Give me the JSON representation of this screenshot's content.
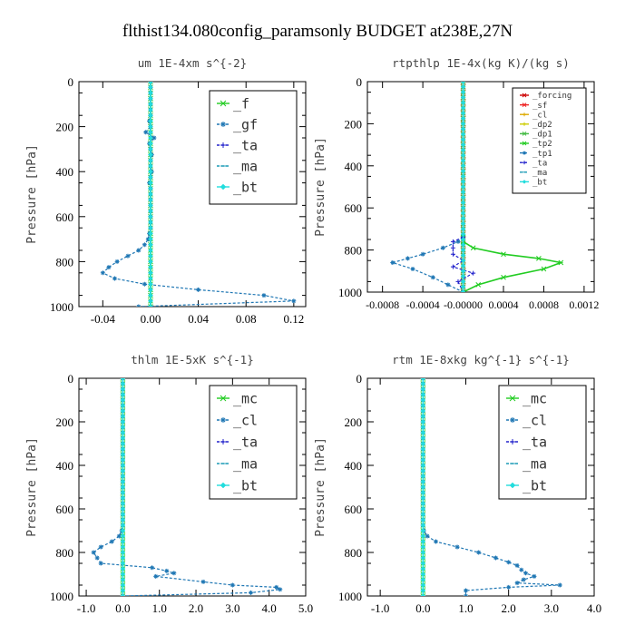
{
  "figure": {
    "title": "flthist134.080config_paramsonly  BUDGET at238E,27N"
  },
  "chart_data": [
    {
      "type": "line",
      "title": "um   1E-4xm s^{-2}",
      "ylabel": "Pressure [hPa]",
      "xlim": [
        -0.06,
        0.13
      ],
      "ylim": [
        1000,
        0
      ],
      "x_ticks": [
        -0.04,
        0.0,
        0.04,
        0.08,
        0.12
      ],
      "x_tick_labels": [
        "-0.04",
        "0.00",
        "0.04",
        "0.08",
        "0.12"
      ],
      "y_ticks": [
        0,
        200,
        400,
        600,
        800,
        1000
      ],
      "legend_position": "top-right",
      "series": [
        {
          "name": "_f",
          "color": "#22cc22",
          "style": "solid",
          "marker": "x",
          "x": [
            0,
            0,
            0,
            0,
            0,
            0,
            0,
            0,
            0,
            0,
            0,
            0,
            0,
            0,
            0,
            0,
            0,
            0,
            0,
            0,
            0,
            0,
            0,
            0,
            0,
            0,
            0,
            0,
            0,
            0,
            0,
            0,
            0,
            0,
            0,
            0,
            0,
            0,
            0,
            0,
            0
          ],
          "y": [
            0,
            25,
            50,
            75,
            100,
            125,
            150,
            175,
            200,
            225,
            250,
            275,
            300,
            325,
            350,
            375,
            400,
            425,
            450,
            475,
            500,
            525,
            550,
            575,
            600,
            625,
            650,
            675,
            700,
            725,
            750,
            775,
            800,
            825,
            850,
            875,
            900,
            925,
            950,
            975,
            1000
          ]
        },
        {
          "name": "_gf",
          "color": "#1f77b4",
          "style": "dashed",
          "marker": "asterisk",
          "x": [
            0,
            0,
            0,
            0,
            0,
            0,
            0,
            -0.001,
            0,
            -0.004,
            0.003,
            -0.001,
            0,
            0.001,
            0,
            0,
            0.001,
            0,
            -0.001,
            0,
            0,
            0,
            0,
            0,
            0,
            0,
            0,
            -0.001,
            -0.002,
            -0.005,
            -0.01,
            -0.019,
            -0.028,
            -0.035,
            -0.04,
            -0.03,
            -0.005,
            0.04,
            0.095,
            0.12,
            -0.01
          ],
          "y": [
            0,
            25,
            50,
            75,
            100,
            125,
            150,
            175,
            200,
            225,
            250,
            275,
            300,
            325,
            350,
            375,
            400,
            425,
            450,
            475,
            500,
            525,
            550,
            575,
            600,
            625,
            650,
            675,
            700,
            725,
            750,
            775,
            800,
            825,
            850,
            875,
            900,
            925,
            950,
            975,
            1000
          ]
        },
        {
          "name": "_ta",
          "color": "#2222cc",
          "style": "dashed",
          "marker": "plus",
          "x": [
            0,
            0
          ],
          "y": [
            0,
            1000
          ]
        },
        {
          "name": "_ma",
          "color": "#1a9ab5",
          "style": "dashed",
          "marker": "dash",
          "x": [
            0,
            0
          ],
          "y": [
            0,
            1000
          ]
        },
        {
          "name": "_bt",
          "color": "#22dddd",
          "style": "solid",
          "marker": "diamond",
          "x": [
            0,
            0
          ],
          "y": [
            0,
            1000
          ]
        }
      ]
    },
    {
      "type": "line",
      "title": "rtpthlp   1E-4x(kg K)/(kg s)",
      "ylabel": "Pressure [hPa]",
      "xlim": [
        -0.00095,
        0.0013
      ],
      "ylim": [
        1000,
        0
      ],
      "x_ticks": [
        -0.0008,
        -0.0004,
        0.0,
        0.0004,
        0.0008,
        0.0012
      ],
      "x_tick_labels": [
        "-0.0008",
        "-0.0004",
        "-0.00000",
        "0.0004",
        "0.0008",
        "0.0012"
      ],
      "y_ticks": [
        0,
        200,
        400,
        600,
        800,
        1000
      ],
      "legend_position": "top-right",
      "series": [
        {
          "name": "_forcing",
          "color": "#cc0000",
          "style": "solid",
          "marker": "x",
          "x": [
            0,
            0
          ],
          "y": [
            0,
            1000
          ]
        },
        {
          "name": "_sf",
          "color": "#ee2222",
          "style": "solid",
          "marker": "x",
          "x": [
            0,
            0
          ],
          "y": [
            0,
            1000
          ]
        },
        {
          "name": "_cl",
          "color": "#ddaa00",
          "style": "solid",
          "marker": "plus",
          "x": [
            0,
            0
          ],
          "y": [
            0,
            1000
          ]
        },
        {
          "name": "_dp2",
          "color": "#cccc00",
          "style": "solid",
          "marker": "plus",
          "x": [
            0,
            0
          ],
          "y": [
            0,
            1000
          ]
        },
        {
          "name": "_dp1",
          "color": "#44bb44",
          "style": "solid",
          "marker": "x",
          "x": [
            0,
            0
          ],
          "y": [
            0,
            1000
          ]
        },
        {
          "name": "_tp2",
          "color": "#22cc22",
          "style": "solid",
          "marker": "x",
          "x": [
            0,
            0,
            0.0001,
            0.0004,
            0.00075,
            0.00097,
            0.0008,
            0.0004,
            0.00015,
            0
          ],
          "y": [
            740,
            760,
            790,
            820,
            840,
            860,
            890,
            930,
            965,
            1000
          ]
        },
        {
          "name": "_tp1",
          "color": "#1f77b4",
          "style": "dashed",
          "marker": "asterisk",
          "x": [
            0,
            -5e-05,
            -0.0002,
            -0.0004,
            -0.00055,
            -0.0007,
            -0.0005,
            -0.0003,
            -0.00015,
            0
          ],
          "y": [
            740,
            760,
            790,
            820,
            840,
            860,
            890,
            930,
            965,
            1000
          ]
        },
        {
          "name": "_ta",
          "color": "#2222cc",
          "style": "dashed",
          "marker": "plus",
          "x": [
            0,
            -0.0001,
            -0.0001,
            -0.0001,
            0,
            -0.0001,
            0.0001,
            -5e-05,
            0
          ],
          "y": [
            740,
            760,
            790,
            820,
            850,
            880,
            910,
            950,
            1000
          ]
        },
        {
          "name": "_ma",
          "color": "#1a9ab5",
          "style": "dashed",
          "marker": "dash",
          "x": [
            0,
            0
          ],
          "y": [
            0,
            1000
          ]
        },
        {
          "name": "_bt",
          "color": "#22dddd",
          "style": "solid",
          "marker": "diamond",
          "x": [
            0,
            0
          ],
          "y": [
            0,
            1000
          ]
        }
      ]
    },
    {
      "type": "line",
      "title": "thlm   1E-5xK s^{-1}",
      "ylabel": "Pressure [hPa]",
      "xlim": [
        -1.2,
        5.0
      ],
      "ylim": [
        1000,
        0
      ],
      "x_ticks": [
        -1.0,
        0.0,
        1.0,
        2.0,
        3.0,
        4.0,
        5.0
      ],
      "x_tick_labels": [
        "-1.0",
        "0.0",
        "1.0",
        "2.0",
        "3.0",
        "4.0",
        "5.0"
      ],
      "y_ticks": [
        0,
        200,
        400,
        600,
        800,
        1000
      ],
      "legend_position": "top-right",
      "series": [
        {
          "name": "_mc",
          "color": "#22cc22",
          "style": "solid",
          "marker": "x",
          "x": [
            0,
            0,
            0,
            0,
            0,
            0,
            0,
            0,
            0,
            0,
            0,
            0,
            0,
            0,
            0,
            0,
            0,
            0,
            0,
            0,
            0,
            0,
            0,
            0,
            0,
            0,
            0,
            0,
            0,
            0,
            0,
            0,
            0,
            0,
            0,
            0,
            0,
            0,
            0,
            0,
            0
          ],
          "y": [
            0,
            25,
            50,
            75,
            100,
            125,
            150,
            175,
            200,
            225,
            250,
            275,
            300,
            325,
            350,
            375,
            400,
            425,
            450,
            475,
            500,
            525,
            550,
            575,
            600,
            625,
            650,
            675,
            700,
            725,
            750,
            775,
            800,
            825,
            850,
            875,
            900,
            925,
            950,
            975,
            1000
          ]
        },
        {
          "name": "_cl",
          "color": "#1f77b4",
          "style": "dashed",
          "marker": "asterisk",
          "x": [
            0,
            0,
            0,
            0,
            0,
            0,
            0,
            0,
            0,
            0,
            0,
            0,
            0,
            0,
            0,
            0,
            0,
            0,
            0,
            0,
            0,
            0,
            0,
            0,
            0,
            0,
            0,
            0,
            -0.03,
            -0.1,
            -0.3,
            -0.6,
            -0.8,
            -0.7,
            -0.6,
            0.8,
            1.2,
            1.4,
            0.9,
            2.2,
            3.0,
            4.2,
            4.3,
            3.5,
            0
          ],
          "y": [
            0,
            25,
            50,
            75,
            100,
            125,
            150,
            175,
            200,
            225,
            250,
            275,
            300,
            325,
            350,
            375,
            400,
            425,
            450,
            475,
            500,
            525,
            550,
            575,
            600,
            625,
            650,
            675,
            700,
            725,
            750,
            775,
            800,
            825,
            850,
            870,
            885,
            895,
            910,
            935,
            950,
            960,
            970,
            985,
            1000
          ]
        },
        {
          "name": "_ta",
          "color": "#2222cc",
          "style": "dashed",
          "marker": "plus",
          "x": [
            0,
            0
          ],
          "y": [
            0,
            1000
          ]
        },
        {
          "name": "_ma",
          "color": "#1a9ab5",
          "style": "dashed",
          "marker": "dash",
          "x": [
            0,
            0
          ],
          "y": [
            0,
            1000
          ]
        },
        {
          "name": "_bt",
          "color": "#22dddd",
          "style": "solid",
          "marker": "diamond",
          "x": [
            0,
            0
          ],
          "y": [
            0,
            1000
          ]
        }
      ]
    },
    {
      "type": "line",
      "title": "rtm   1E-8xkg kg^{-1} s^{-1}",
      "ylabel": "Pressure [hPa]",
      "xlim": [
        -1.3,
        4.0
      ],
      "ylim": [
        1000,
        0
      ],
      "x_ticks": [
        -1.0,
        0.0,
        1.0,
        2.0,
        3.0,
        4.0
      ],
      "x_tick_labels": [
        "-1.0",
        "0.0",
        "1.0",
        "2.0",
        "3.0",
        "4.0"
      ],
      "y_ticks": [
        0,
        200,
        400,
        600,
        800,
        1000
      ],
      "legend_position": "top-right",
      "series": [
        {
          "name": "_mc",
          "color": "#22cc22",
          "style": "solid",
          "marker": "x",
          "x": [
            0,
            0,
            0,
            0,
            0,
            0,
            0,
            0,
            0,
            0,
            0,
            0,
            0,
            0,
            0,
            0,
            0,
            0,
            0,
            0,
            0,
            0,
            0,
            0,
            0,
            0,
            0,
            0,
            0,
            0,
            0,
            0,
            0,
            0,
            0,
            0,
            0,
            0,
            0,
            0,
            0
          ],
          "y": [
            0,
            25,
            50,
            75,
            100,
            125,
            150,
            175,
            200,
            225,
            250,
            275,
            300,
            325,
            350,
            375,
            400,
            425,
            450,
            475,
            500,
            525,
            550,
            575,
            600,
            625,
            650,
            675,
            700,
            725,
            750,
            775,
            800,
            825,
            850,
            875,
            900,
            925,
            950,
            975,
            1000
          ]
        },
        {
          "name": "_cl",
          "color": "#1f77b4",
          "style": "dashed",
          "marker": "asterisk",
          "x": [
            0,
            0,
            0,
            0,
            0,
            0,
            0,
            0,
            0,
            0,
            0,
            0,
            0,
            0,
            0,
            0,
            0,
            0,
            0,
            0,
            0,
            0,
            0,
            0,
            0,
            0,
            0,
            0,
            0.02,
            0.1,
            0.3,
            0.8,
            1.3,
            1.7,
            2.0,
            2.2,
            2.3,
            2.4,
            2.6,
            2.35,
            2.2,
            3.2,
            2.0,
            1.0,
            1.0
          ],
          "y": [
            0,
            25,
            50,
            75,
            100,
            125,
            150,
            175,
            200,
            225,
            250,
            275,
            300,
            325,
            350,
            375,
            400,
            425,
            450,
            475,
            500,
            525,
            550,
            575,
            600,
            625,
            650,
            675,
            700,
            725,
            750,
            775,
            800,
            825,
            845,
            860,
            880,
            895,
            910,
            925,
            940,
            950,
            960,
            975,
            1000
          ]
        },
        {
          "name": "_ta",
          "color": "#2222cc",
          "style": "dashed",
          "marker": "plus",
          "x": [
            0,
            0
          ],
          "y": [
            0,
            1000
          ]
        },
        {
          "name": "_ma",
          "color": "#1a9ab5",
          "style": "dashed",
          "marker": "dash",
          "x": [
            0,
            0
          ],
          "y": [
            0,
            1000
          ]
        },
        {
          "name": "_bt",
          "color": "#22dddd",
          "style": "solid",
          "marker": "diamond",
          "x": [
            0,
            0
          ],
          "y": [
            0,
            1000
          ]
        }
      ]
    }
  ]
}
